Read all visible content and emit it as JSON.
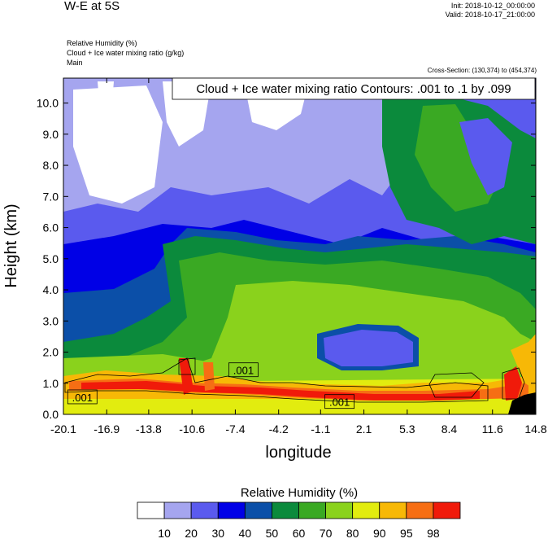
{
  "header": {
    "title": "W-E at 5S",
    "init": "Init: 2018-10-12_00:00:00",
    "valid": "Valid: 2018-10-17_21:00:00",
    "subtitles": [
      "Relative Humidity   (%)",
      "Cloud + Ice water mixing ratio   (g/kg)",
      "Main"
    ],
    "cross_section": "Cross-Section: (130,374) to (454,374)"
  },
  "chart_data": {
    "type": "heatmap",
    "title": "W-E at 5S",
    "xlabel": "longitude",
    "ylabel": "Height (km)",
    "x_ticks": [
      "-20.1",
      "-16.9",
      "-13.8",
      "-10.6",
      "-7.4",
      "-4.2",
      "-1.1",
      "2.1",
      "5.3",
      "8.4",
      "11.6",
      "14.8"
    ],
    "y_ticks": [
      "0.0",
      "1.0",
      "2.0",
      "3.0",
      "4.0",
      "5.0",
      "6.0",
      "7.0",
      "8.0",
      "9.0",
      "10.0"
    ],
    "xlim": [
      -20.1,
      14.8
    ],
    "ylim": [
      0,
      10.8
    ],
    "contour_note": "Cloud + Ice water mixing ratio Contours: .001 to .1 by .099",
    "contour_labels": [
      {
        "text": ".001",
        "x": -18.7,
        "y": 0.55
      },
      {
        "text": ".001",
        "x": -6.8,
        "y": 1.42
      },
      {
        "text": ".001",
        "x": 0.3,
        "y": 0.4
      }
    ],
    "colorbar": {
      "title": "Relative Humidity  (%)",
      "levels": [
        "10",
        "20",
        "30",
        "40",
        "50",
        "60",
        "70",
        "80",
        "90",
        "95",
        "98"
      ],
      "colors": [
        "#ffffff",
        "#a5a5ef",
        "#5a5aee",
        "#0000e6",
        "#0b4fa8",
        "#0b8a3c",
        "#3aa923",
        "#8ad21c",
        "#e2ec0f",
        "#f7b806",
        "#f66e14",
        "#f01a0a"
      ]
    }
  }
}
